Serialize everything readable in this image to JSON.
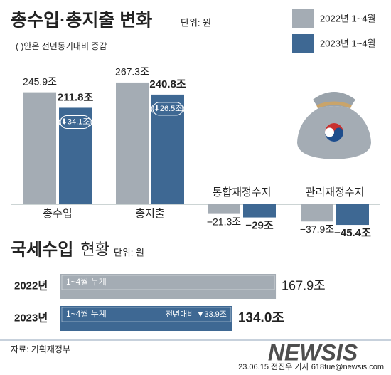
{
  "chart_data": [
    {
      "type": "bar",
      "title": "총수입·총지출 변화",
      "unit": "단위: 원",
      "subtitle": "( )안은 전년동기대비 증감",
      "categories": [
        "총수입",
        "총지출",
        "통합재정수지",
        "관리재정수지"
      ],
      "series": [
        {
          "name": "2022년 1~4월",
          "color": "#a4acb4",
          "values": [
            245.9,
            267.3,
            -21.3,
            -37.9
          ],
          "value_labels": [
            "245.9조",
            "267.3조",
            "−21.3조",
            "−37.9조"
          ]
        },
        {
          "name": "2023년 1~4월",
          "color": "#3e6893",
          "values": [
            211.8,
            240.8,
            -29,
            -45.4
          ],
          "value_labels": [
            "211.8조",
            "240.8조",
            "−29조",
            "−45.4조"
          ]
        }
      ],
      "changes": [
        {
          "value": -34.1,
          "label": "(⬇34.1조)"
        },
        {
          "value": -26.5,
          "label": "(⬇26.5조)"
        }
      ]
    },
    {
      "type": "hbar",
      "title": "국세수입",
      "title_suffix": "현황",
      "unit": "단위: 원",
      "categories": [
        "2022년",
        "2023년"
      ],
      "values": [
        167.9,
        134.0
      ],
      "value_labels": [
        "167.9조",
        "134.0조"
      ],
      "colors": [
        "#a4acb4",
        "#3e6893"
      ],
      "bar_text": "1~4월 누계",
      "change": {
        "value": -33.9,
        "label": "전년대비 ▼33.9조"
      }
    }
  ],
  "source": "자료: 기획재정부",
  "credit": "23.06.15 전진우 기자 618tue@newsis.com",
  "watermark": "NEWSIS"
}
